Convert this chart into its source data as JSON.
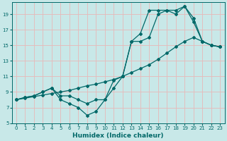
{
  "xlabel": "Humidex (Indice chaleur)",
  "ylabel": "",
  "xlim": [
    -0.5,
    23.5
  ],
  "ylim": [
    5,
    20.5
  ],
  "yticks": [
    5,
    7,
    9,
    11,
    13,
    15,
    17,
    19
  ],
  "xticks": [
    0,
    1,
    2,
    3,
    4,
    5,
    6,
    7,
    8,
    9,
    10,
    11,
    12,
    13,
    14,
    15,
    16,
    17,
    18,
    19,
    20,
    21,
    22,
    23
  ],
  "background_color": "#c8e8e8",
  "grid_color": "#e8b8b8",
  "line_color": "#006868",
  "lines": [
    {
      "x": [
        0,
        1,
        2,
        3,
        4,
        5,
        6,
        7,
        8,
        9,
        10,
        11,
        12,
        13,
        14,
        15,
        16,
        17,
        18,
        19,
        20,
        21,
        22,
        23
      ],
      "y": [
        8,
        8.2,
        8.4,
        8.6,
        8.8,
        9.0,
        9.2,
        9.5,
        9.8,
        10.0,
        10.3,
        10.6,
        11.0,
        11.5,
        12.0,
        12.5,
        13.2,
        14.0,
        14.8,
        15.5,
        16.0,
        15.5,
        15.0,
        14.8
      ]
    },
    {
      "x": [
        0,
        1,
        2,
        3,
        4,
        5,
        6,
        7,
        8,
        9,
        10,
        11,
        12,
        13,
        14,
        15,
        16,
        17,
        18,
        19,
        20,
        21,
        22,
        23
      ],
      "y": [
        8,
        8.3,
        8.5,
        9,
        9.5,
        8.5,
        8.5,
        8,
        7.5,
        8,
        8,
        9.5,
        11,
        15.5,
        15.5,
        16,
        19,
        19.5,
        19,
        20,
        18,
        15.5,
        15,
        14.8
      ]
    },
    {
      "x": [
        0,
        1,
        2,
        3,
        4,
        5,
        6,
        7,
        8,
        9,
        10,
        11,
        12,
        13,
        14,
        15,
        16,
        17,
        18,
        19,
        20,
        21,
        22,
        23
      ],
      "y": [
        8,
        8.3,
        8.5,
        9,
        9.5,
        8,
        7.5,
        7,
        6,
        6.5,
        8,
        10.5,
        11,
        15.5,
        16.5,
        19.5,
        19.5,
        19.5,
        19.5,
        20,
        18.5,
        15.5,
        15,
        14.8
      ]
    }
  ]
}
